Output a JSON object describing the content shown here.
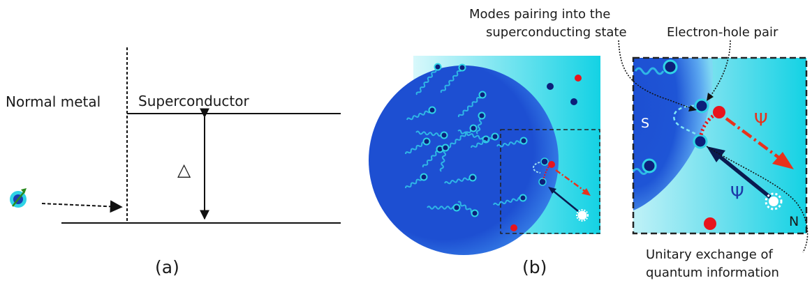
{
  "panel_a": {
    "normal_metal_label": "Normal metal",
    "superconductor_label": "Superconductor",
    "gap_label": "△",
    "caption": "(a)"
  },
  "panel_b": {
    "caption": "(b)",
    "top_callout_line1": "Modes pairing into the",
    "top_callout_line2": "superconducting state",
    "pair_label": "Electron-hole pair",
    "psi_red": "Ψ",
    "psi_blue": "Ψ",
    "s_label": "S",
    "n_label": "N",
    "bottom_callout_line1": "Unitary exchange of",
    "bottom_callout_line2": "quantum information"
  },
  "colors": {
    "superconductor_blue": "#1c4fd1",
    "normal_cyan": "#1ed6e6",
    "electron_dark": "#0d1f7a",
    "hole_red": "#e8141c",
    "wave_cyan": "#2fb6e6",
    "arrow_red": "#e8321c",
    "arrow_navy": "#0a1a4f"
  }
}
